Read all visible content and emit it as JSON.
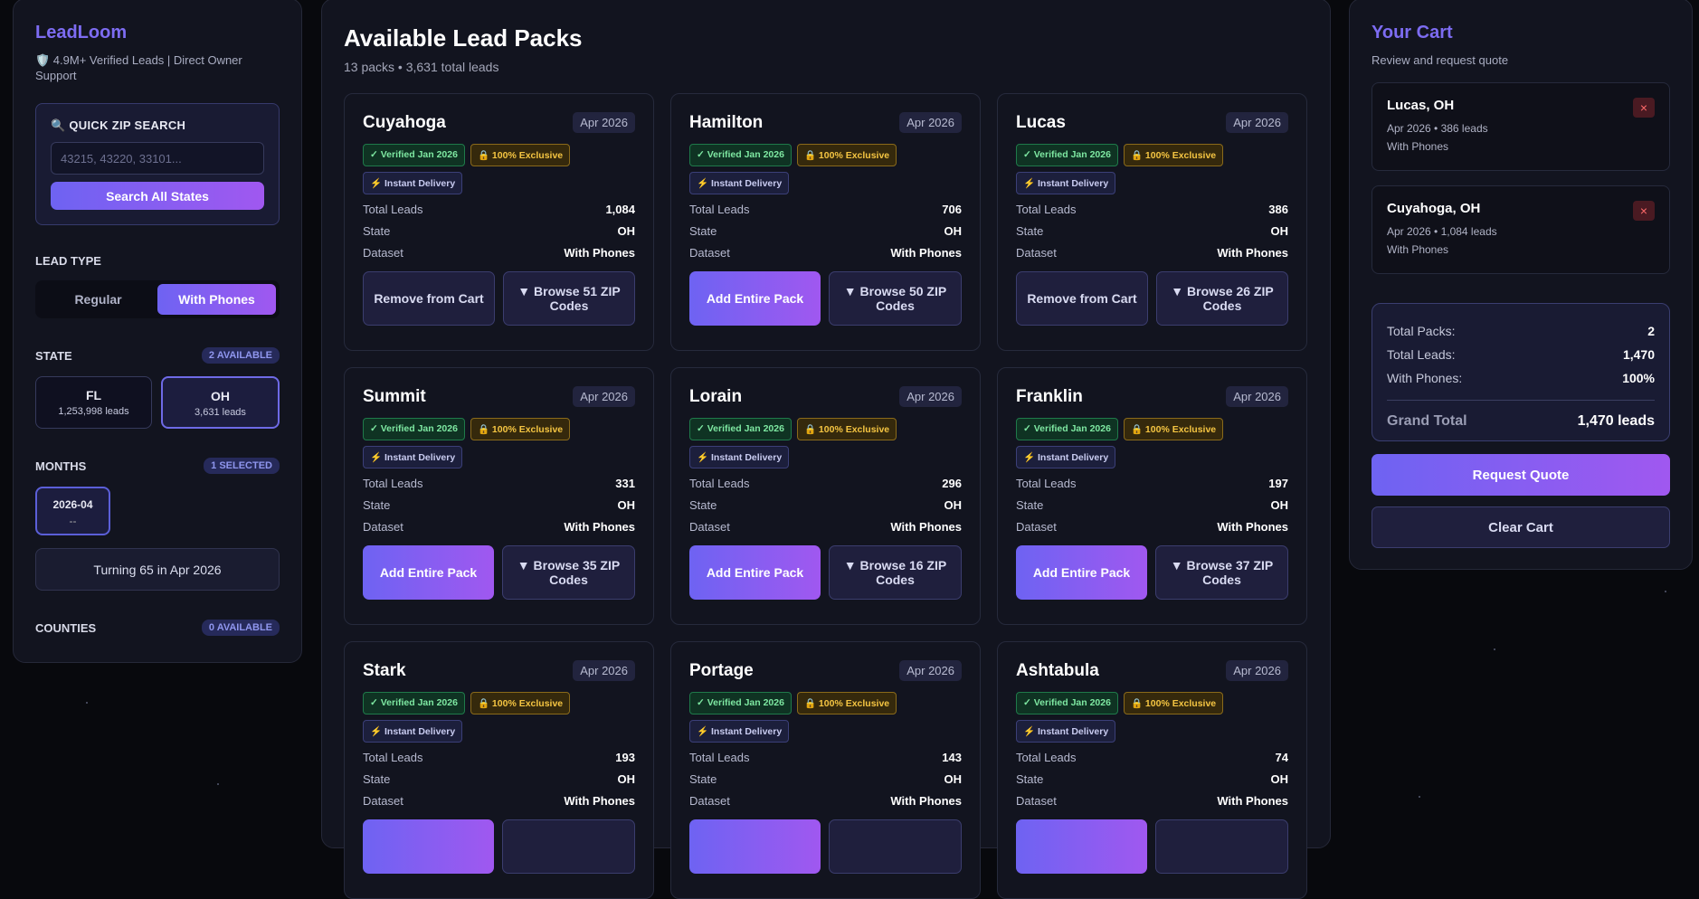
{
  "sidebar": {
    "brand": "LeadLoom",
    "tagline": "🛡️ 4.9M+ Verified Leads | Direct Owner Support",
    "zip_search": {
      "title": "🔍 QUICK ZIP SEARCH",
      "placeholder": "43215, 43220, 33101...",
      "button": "Search All States"
    },
    "lead_type": {
      "label": "LEAD TYPE",
      "options": [
        "Regular",
        "With Phones"
      ],
      "selected": 1
    },
    "state": {
      "label": "STATE",
      "badge": "2 AVAILABLE",
      "options": [
        {
          "code": "FL",
          "leads": "1,253,998 leads",
          "selected": false
        },
        {
          "code": "OH",
          "leads": "3,631 leads",
          "selected": true
        }
      ]
    },
    "months": {
      "label": "MONTHS",
      "badge": "1 SELECTED",
      "options": [
        {
          "value": "2026-04",
          "sub": "--"
        }
      ]
    },
    "note": "Turning 65 in Apr 2026",
    "counties": {
      "label": "COUNTIES",
      "badge": "0 AVAILABLE"
    }
  },
  "main": {
    "title": "Available Lead Packs",
    "subtitle": "13 packs • 3,631 total leads",
    "cards": [
      {
        "name": "Cuyahoga",
        "date": "Apr 2026",
        "badges": [
          "✓ Verified Jan 2026",
          "🔒 100% Exclusive",
          "⚡ Instant Delivery"
        ],
        "rows": [
          {
            "label": "Total Leads",
            "value": "1,084"
          },
          {
            "label": "State",
            "value": "OH"
          },
          {
            "label": "Dataset",
            "value": "With Phones"
          }
        ],
        "in_cart": true,
        "primary_button": "Remove from Cart",
        "browse_button": "▼ Browse 51 ZIP Codes"
      },
      {
        "name": "Hamilton",
        "date": "Apr 2026",
        "badges": [
          "✓ Verified Jan 2026",
          "🔒 100% Exclusive",
          "⚡ Instant Delivery"
        ],
        "rows": [
          {
            "label": "Total Leads",
            "value": "706"
          },
          {
            "label": "State",
            "value": "OH"
          },
          {
            "label": "Dataset",
            "value": "With Phones"
          }
        ],
        "in_cart": false,
        "primary_button": "Add Entire Pack",
        "browse_button": "▼ Browse 50 ZIP Codes"
      },
      {
        "name": "Lucas",
        "date": "Apr 2026",
        "badges": [
          "✓ Verified Jan 2026",
          "🔒 100% Exclusive",
          "⚡ Instant Delivery"
        ],
        "rows": [
          {
            "label": "Total Leads",
            "value": "386"
          },
          {
            "label": "State",
            "value": "OH"
          },
          {
            "label": "Dataset",
            "value": "With Phones"
          }
        ],
        "in_cart": true,
        "primary_button": "Remove from Cart",
        "browse_button": "▼ Browse 26 ZIP Codes"
      },
      {
        "name": "Summit",
        "date": "Apr 2026",
        "badges": [
          "✓ Verified Jan 2026",
          "🔒 100% Exclusive",
          "⚡ Instant Delivery"
        ],
        "rows": [
          {
            "label": "Total Leads",
            "value": "331"
          },
          {
            "label": "State",
            "value": "OH"
          },
          {
            "label": "Dataset",
            "value": "With Phones"
          }
        ],
        "in_cart": false,
        "primary_button": "Add Entire Pack",
        "browse_button": "▼ Browse 35 ZIP Codes"
      },
      {
        "name": "Lorain",
        "date": "Apr 2026",
        "badges": [
          "✓ Verified Jan 2026",
          "🔒 100% Exclusive",
          "⚡ Instant Delivery"
        ],
        "rows": [
          {
            "label": "Total Leads",
            "value": "296"
          },
          {
            "label": "State",
            "value": "OH"
          },
          {
            "label": "Dataset",
            "value": "With Phones"
          }
        ],
        "in_cart": false,
        "primary_button": "Add Entire Pack",
        "browse_button": "▼ Browse 16 ZIP Codes"
      },
      {
        "name": "Franklin",
        "date": "Apr 2026",
        "badges": [
          "✓ Verified Jan 2026",
          "🔒 100% Exclusive",
          "⚡ Instant Delivery"
        ],
        "rows": [
          {
            "label": "Total Leads",
            "value": "197"
          },
          {
            "label": "State",
            "value": "OH"
          },
          {
            "label": "Dataset",
            "value": "With Phones"
          }
        ],
        "in_cart": false,
        "primary_button": "Add Entire Pack",
        "browse_button": "▼ Browse 37 ZIP Codes"
      },
      {
        "name": "Stark",
        "date": "Apr 2026",
        "badges": [
          "✓ Verified Jan 2026",
          "🔒 100% Exclusive",
          "⚡ Instant Delivery"
        ],
        "rows": [
          {
            "label": "Total Leads",
            "value": "193"
          },
          {
            "label": "State",
            "value": "OH"
          },
          {
            "label": "Dataset",
            "value": "With Phones"
          }
        ],
        "in_cart": false
      },
      {
        "name": "Portage",
        "date": "Apr 2026",
        "badges": [
          "✓ Verified Jan 2026",
          "🔒 100% Exclusive",
          "⚡ Instant Delivery"
        ],
        "rows": [
          {
            "label": "Total Leads",
            "value": "143"
          },
          {
            "label": "State",
            "value": "OH"
          },
          {
            "label": "Dataset",
            "value": "With Phones"
          }
        ],
        "in_cart": false
      },
      {
        "name": "Ashtabula",
        "date": "Apr 2026",
        "badges": [
          "✓ Verified Jan 2026",
          "🔒 100% Exclusive",
          "⚡ Instant Delivery"
        ],
        "rows": [
          {
            "label": "Total Leads",
            "value": "74"
          },
          {
            "label": "State",
            "value": "OH"
          },
          {
            "label": "Dataset",
            "value": "With Phones"
          }
        ],
        "in_cart": false
      }
    ]
  },
  "cart": {
    "title": "Your Cart",
    "subtitle": "Review and request quote",
    "items": [
      {
        "name": "Lucas, OH",
        "detail": "Apr 2026 • 386 leads",
        "dataset": "With Phones",
        "remove": "×"
      },
      {
        "name": "Cuyahoga, OH",
        "detail": "Apr 2026 • 1,084 leads",
        "dataset": "With Phones",
        "remove": "×"
      }
    ],
    "summary": [
      {
        "label": "Total Packs:",
        "value": "2"
      },
      {
        "label": "Total Leads:",
        "value": "1,470"
      },
      {
        "label": "With Phones:",
        "value": "100%"
      }
    ],
    "grand_total": {
      "label": "Grand Total",
      "value": "1,470 leads"
    },
    "request_button": "Request Quote",
    "clear_button": "Clear Cart"
  }
}
